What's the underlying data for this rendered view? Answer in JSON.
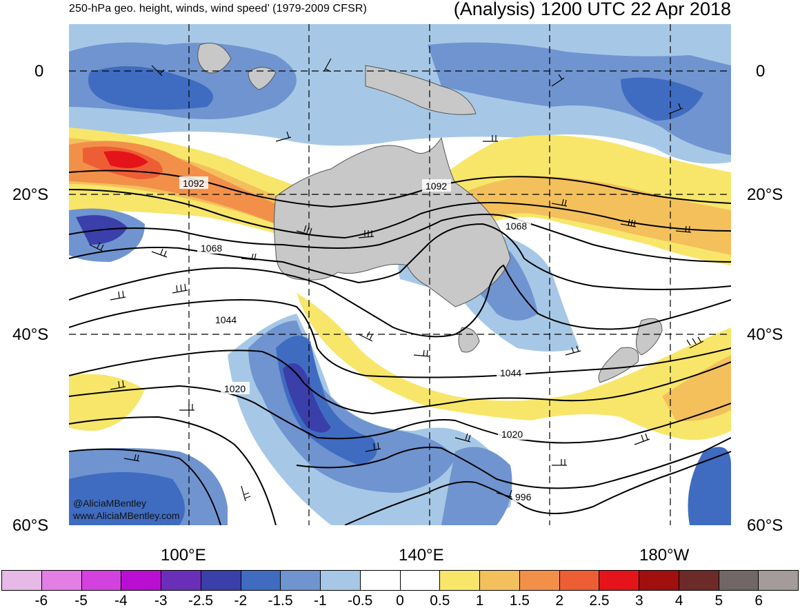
{
  "header": {
    "left_title": "250-hPa geo. height, winds, wind speed’ (1979-2009 CFSR)",
    "right_title": "(Analysis) 1200 UTC 22 Apr 2018"
  },
  "map": {
    "lat_labels_left": [
      "0",
      "20°S",
      "40°S",
      "60°S"
    ],
    "lat_labels_right": [
      "0",
      "20°S",
      "40°S",
      "60°S"
    ],
    "lon_labels": [
      "100°E",
      "140°E",
      "180°W"
    ],
    "contour_labels": [
      "1092",
      "1092",
      "1068",
      "1068",
      "1044",
      "1044",
      "1020",
      "1020",
      "996"
    ],
    "credit_line1": "@AliciaMBentley",
    "credit_line2": "www.AliciaMBentley.com"
  },
  "colorbar": {
    "colors": [
      "#e7b9e6",
      "#e27ee4",
      "#d342de",
      "#b90fd2",
      "#6a2fb8",
      "#3a3fa9",
      "#3f6cc1",
      "#6f94d0",
      "#a6c8e6",
      "#ffffff",
      "#ffffff",
      "#f8e66a",
      "#f3c05c",
      "#f2904a",
      "#ee5e35",
      "#e5141a",
      "#a10f0f",
      "#6c2a29",
      "#716766",
      "#a49b9b"
    ],
    "tick_labels": [
      "-6",
      "-5",
      "-4",
      "-3",
      "-2.5",
      "-2",
      "-1.5",
      "-1",
      "-0.5",
      "0",
      "0.5",
      "1",
      "1.5",
      "2",
      "2.5",
      "3",
      "4",
      "5",
      "6"
    ]
  }
}
